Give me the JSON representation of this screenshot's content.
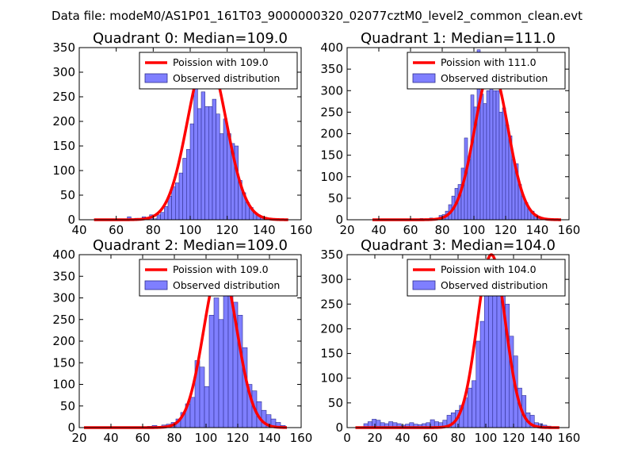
{
  "figure": {
    "suptitle": "Data file: modeM0/AS1P01_161T03_9000000320_02077cztM0_level2_common_clean.evt"
  },
  "colors": {
    "bar_fill": "#7f7fff",
    "bar_edge": "#2f2f8f",
    "fit_line": "#ff0000",
    "axes": "#000000",
    "background": "#ffffff"
  },
  "chart_data": [
    {
      "type": "bar",
      "title": "Quadrant 0: Median=109.0",
      "xlim": [
        40,
        160
      ],
      "ylim": [
        0,
        350
      ],
      "xticks": [
        40,
        60,
        80,
        100,
        120,
        140,
        160
      ],
      "yticks": [
        0,
        50,
        100,
        150,
        200,
        250,
        300,
        350
      ],
      "xtick_labels": [
        "40",
        "60",
        "80",
        "100",
        "120",
        "140",
        "160"
      ],
      "ytick_labels": [
        "0",
        "50",
        "100",
        "150",
        "200",
        "250",
        "300",
        "350"
      ],
      "bin_width": 2,
      "legend": {
        "location": "upper right",
        "line_label": "Poission with 109.0",
        "bar_label": "Observed distribution"
      },
      "fit": {
        "label": "Poission with 109.0",
        "mean": 109.0,
        "peak": 333,
        "x_range": [
          48,
          153
        ]
      },
      "bins": [
        [
          66,
          6
        ],
        [
          70,
          3
        ],
        [
          74,
          6
        ],
        [
          78,
          10
        ],
        [
          80,
          2
        ],
        [
          82,
          10
        ],
        [
          84,
          15
        ],
        [
          86,
          27
        ],
        [
          88,
          48
        ],
        [
          90,
          67
        ],
        [
          92,
          75
        ],
        [
          94,
          95
        ],
        [
          96,
          125
        ],
        [
          98,
          143
        ],
        [
          100,
          195
        ],
        [
          102,
          333
        ],
        [
          104,
          226
        ],
        [
          106,
          260
        ],
        [
          108,
          230
        ],
        [
          110,
          230
        ],
        [
          112,
          245
        ],
        [
          114,
          215
        ],
        [
          116,
          175
        ],
        [
          118,
          205
        ],
        [
          120,
          175
        ],
        [
          122,
          155
        ],
        [
          124,
          150
        ],
        [
          126,
          80
        ],
        [
          128,
          55
        ],
        [
          130,
          35
        ],
        [
          132,
          25
        ],
        [
          134,
          15
        ],
        [
          136,
          10
        ],
        [
          138,
          5
        ],
        [
          140,
          3
        ],
        [
          142,
          2
        ],
        [
          146,
          1
        ]
      ]
    },
    {
      "type": "bar",
      "title": "Quadrant 1: Median=111.0",
      "xlim": [
        20,
        160
      ],
      "ylim": [
        0,
        400
      ],
      "xticks": [
        20,
        40,
        60,
        80,
        100,
        120,
        140,
        160
      ],
      "yticks": [
        0,
        50,
        100,
        150,
        200,
        250,
        300,
        350,
        400
      ],
      "xtick_labels": [
        "20",
        "40",
        "60",
        "80",
        "100",
        "120",
        "140",
        "160"
      ],
      "ytick_labels": [
        "0",
        "50",
        "100",
        "150",
        "200",
        "250",
        "300",
        "350",
        "400"
      ],
      "bin_width": 2,
      "legend": {
        "location": "upper right",
        "line_label": "Poission with 111.0",
        "bar_label": "Observed distribution"
      },
      "fit": {
        "label": "Poission with 111.0",
        "mean": 111.0,
        "peak": 350,
        "x_range": [
          36,
          155
        ]
      },
      "bins": [
        [
          38,
          2
        ],
        [
          56,
          2
        ],
        [
          66,
          3
        ],
        [
          72,
          4
        ],
        [
          78,
          10
        ],
        [
          80,
          12
        ],
        [
          82,
          20
        ],
        [
          84,
          35
        ],
        [
          86,
          55
        ],
        [
          88,
          73
        ],
        [
          90,
          82
        ],
        [
          92,
          120
        ],
        [
          94,
          190
        ],
        [
          96,
          140
        ],
        [
          98,
          290
        ],
        [
          100,
          262
        ],
        [
          102,
          395
        ],
        [
          104,
          292
        ],
        [
          106,
          270
        ],
        [
          108,
          300
        ],
        [
          110,
          385
        ],
        [
          112,
          300
        ],
        [
          114,
          300
        ],
        [
          116,
          250
        ],
        [
          118,
          260
        ],
        [
          120,
          220
        ],
        [
          122,
          195
        ],
        [
          124,
          140
        ],
        [
          126,
          130
        ],
        [
          128,
          82
        ],
        [
          130,
          55
        ],
        [
          132,
          40
        ],
        [
          134,
          25
        ],
        [
          136,
          20
        ],
        [
          138,
          12
        ],
        [
          140,
          8
        ],
        [
          142,
          5
        ],
        [
          144,
          3
        ],
        [
          146,
          2
        ]
      ]
    },
    {
      "type": "bar",
      "title": "Quadrant 2: Median=109.0",
      "xlim": [
        20,
        160
      ],
      "ylim": [
        0,
        400
      ],
      "xticks": [
        20,
        40,
        60,
        80,
        100,
        120,
        140,
        160
      ],
      "yticks": [
        0,
        50,
        100,
        150,
        200,
        250,
        300,
        350,
        400
      ],
      "xtick_labels": [
        "20",
        "40",
        "60",
        "80",
        "100",
        "120",
        "140",
        "160"
      ],
      "ytick_labels": [
        "0",
        "50",
        "100",
        "150",
        "200",
        "250",
        "300",
        "350",
        "400"
      ],
      "bin_width": 3,
      "legend": {
        "location": "upper right",
        "line_label": "Poission with 109.0",
        "bar_label": "Observed distribution"
      },
      "fit": {
        "label": "Poission with 109.0",
        "mean": 109.0,
        "peak": 375,
        "x_range": [
          23,
          151
        ]
      },
      "bins": [
        [
          63,
          3
        ],
        [
          66,
          5
        ],
        [
          72,
          6
        ],
        [
          75,
          8
        ],
        [
          78,
          12
        ],
        [
          81,
          20
        ],
        [
          84,
          35
        ],
        [
          87,
          55
        ],
        [
          90,
          70
        ],
        [
          93,
          155
        ],
        [
          96,
          140
        ],
        [
          99,
          95
        ],
        [
          102,
          260
        ],
        [
          105,
          300
        ],
        [
          108,
          250
        ],
        [
          111,
          305
        ],
        [
          114,
          340
        ],
        [
          117,
          290
        ],
        [
          120,
          260
        ],
        [
          123,
          185
        ],
        [
          126,
          100
        ],
        [
          129,
          85
        ],
        [
          132,
          60
        ],
        [
          135,
          40
        ],
        [
          138,
          30
        ],
        [
          141,
          20
        ],
        [
          144,
          12
        ],
        [
          147,
          5
        ]
      ]
    },
    {
      "type": "bar",
      "title": "Quadrant 3: Median=104.0",
      "xlim": [
        0,
        160
      ],
      "ylim": [
        0,
        350
      ],
      "xticks": [
        0,
        20,
        40,
        60,
        80,
        100,
        120,
        140,
        160
      ],
      "yticks": [
        0,
        50,
        100,
        150,
        200,
        250,
        300,
        350
      ],
      "xtick_labels": [
        "0",
        "20",
        "40",
        "60",
        "80",
        "100",
        "120",
        "140",
        "160"
      ],
      "ytick_labels": [
        "0",
        "50",
        "100",
        "150",
        "200",
        "250",
        "300",
        "350"
      ],
      "bin_width": 3,
      "legend": {
        "location": "upper right",
        "line_label": "Poission with 104.0",
        "bar_label": "Observed distribution"
      },
      "fit": {
        "label": "Poission with 104.0",
        "mean": 104.0,
        "peak": 350,
        "x_range": [
          6,
          153
        ]
      },
      "bins": [
        [
          12,
          8
        ],
        [
          15,
          12
        ],
        [
          18,
          17
        ],
        [
          21,
          15
        ],
        [
          24,
          10
        ],
        [
          27,
          8
        ],
        [
          30,
          12
        ],
        [
          33,
          10
        ],
        [
          36,
          8
        ],
        [
          39,
          5
        ],
        [
          42,
          7
        ],
        [
          45,
          10
        ],
        [
          48,
          7
        ],
        [
          51,
          6
        ],
        [
          54,
          8
        ],
        [
          57,
          10
        ],
        [
          60,
          16
        ],
        [
          63,
          12
        ],
        [
          66,
          10
        ],
        [
          69,
          15
        ],
        [
          72,
          25
        ],
        [
          75,
          30
        ],
        [
          78,
          35
        ],
        [
          81,
          45
        ],
        [
          84,
          60
        ],
        [
          87,
          80
        ],
        [
          90,
          95
        ],
        [
          93,
          175
        ],
        [
          96,
          215
        ],
        [
          99,
          275
        ],
        [
          102,
          340
        ],
        [
          105,
          330
        ],
        [
          108,
          325
        ],
        [
          111,
          305
        ],
        [
          114,
          250
        ],
        [
          117,
          185
        ],
        [
          120,
          145
        ],
        [
          123,
          80
        ],
        [
          126,
          65
        ],
        [
          129,
          30
        ],
        [
          132,
          25
        ],
        [
          135,
          10
        ],
        [
          138,
          8
        ],
        [
          141,
          5
        ],
        [
          144,
          3
        ]
      ]
    }
  ]
}
